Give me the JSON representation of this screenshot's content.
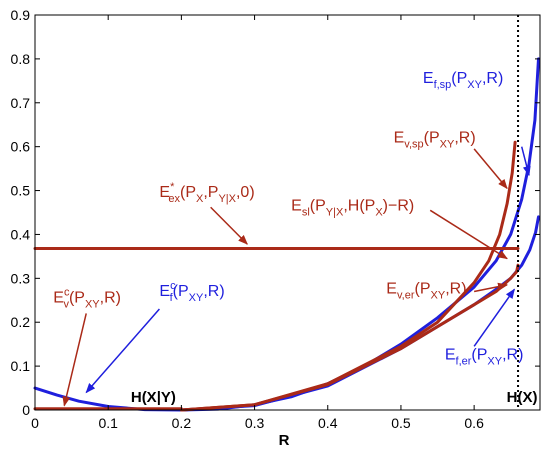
{
  "chart_data": {
    "type": "line",
    "title": "",
    "xlabel": "R",
    "ylabel": "",
    "xlim": [
      0,
      0.69
    ],
    "ylim": [
      0,
      0.9
    ],
    "xticks": [
      "0",
      "0.1",
      "0.2",
      "0.3",
      "0.4",
      "0.5",
      "0.6"
    ],
    "yticks": [
      "0",
      "0.1",
      "0.2",
      "0.3",
      "0.4",
      "0.5",
      "0.6",
      "0.7",
      "0.8",
      "0.9"
    ],
    "vertical_line": {
      "x": 0.66,
      "style": "dotted",
      "label": "H(X)"
    },
    "marker_labels": [
      {
        "text": "H(X|Y)",
        "x": 0.2
      }
    ],
    "series": [
      {
        "color": "#1f1fdd",
        "points": [
          [
            0,
            0.05
          ],
          [
            0.03,
            0.034
          ],
          [
            0.06,
            0.02
          ],
          [
            0.1,
            0.008
          ],
          [
            0.15,
            0.001
          ],
          [
            0.2,
            0
          ],
          [
            0.25,
            0.002
          ],
          [
            0.3,
            0.012
          ],
          [
            0.35,
            0.03
          ],
          [
            0.4,
            0.06
          ],
          [
            0.45,
            0.1
          ],
          [
            0.5,
            0.15
          ],
          [
            0.55,
            0.21
          ],
          [
            0.6,
            0.28
          ],
          [
            0.63,
            0.34
          ],
          [
            0.65,
            0.4
          ],
          [
            0.665,
            0.48
          ],
          [
            0.675,
            0.56
          ],
          [
            0.683,
            0.66
          ],
          [
            0.688,
            0.8
          ]
        ]
      },
      {
        "color": "#1f1fdd",
        "points": [
          [
            0.2,
            0
          ],
          [
            0.3,
            0.01
          ],
          [
            0.4,
            0.055
          ],
          [
            0.5,
            0.14
          ],
          [
            0.55,
            0.19
          ],
          [
            0.6,
            0.24
          ],
          [
            0.63,
            0.275
          ],
          [
            0.65,
            0.3
          ],
          [
            0.665,
            0.33
          ],
          [
            0.676,
            0.365
          ],
          [
            0.684,
            0.405
          ],
          [
            0.688,
            0.44
          ]
        ]
      },
      {
        "color": "#aa2a18",
        "points": [
          [
            0.2,
            0
          ],
          [
            0.3,
            0.012
          ],
          [
            0.4,
            0.06
          ],
          [
            0.5,
            0.145
          ],
          [
            0.55,
            0.2
          ],
          [
            0.6,
            0.29
          ],
          [
            0.62,
            0.34
          ],
          [
            0.635,
            0.4
          ],
          [
            0.645,
            0.47
          ],
          [
            0.652,
            0.54
          ],
          [
            0.656,
            0.61
          ]
        ]
      },
      {
        "color": "#aa2a18",
        "points": [
          [
            0.2,
            0
          ],
          [
            0.3,
            0.012
          ],
          [
            0.4,
            0.058
          ],
          [
            0.5,
            0.14
          ],
          [
            0.56,
            0.2
          ],
          [
            0.6,
            0.24
          ],
          [
            0.63,
            0.27
          ],
          [
            0.65,
            0.3
          ],
          [
            0.658,
            0.315
          ],
          [
            0.66,
            0.33
          ]
        ]
      },
      {
        "color": "#aa2a18",
        "points": [
          [
            0,
            0.368
          ],
          [
            0.66,
            0.368
          ]
        ]
      },
      {
        "color": "#aa2a18",
        "points": [
          [
            0,
            0.003
          ],
          [
            0.2,
            0.003
          ]
        ]
      }
    ],
    "annotations": [
      {
        "color": "#1f1fdd",
        "text": "E",
        "sub": "f,sp",
        "sup": "",
        "arg": "(P",
        "argsub": "XY",
        "tail": ",R)",
        "lx": 0.53,
        "ly": 0.745,
        "ax": 0.665,
        "ay": 0.6,
        "tx": 0.675,
        "ty": 0.535
      },
      {
        "color": "#aa2a18",
        "text": "E",
        "sub": "v,sp",
        "sup": "",
        "arg": "(P",
        "argsub": "XY",
        "tail": ",R)",
        "lx": 0.49,
        "ly": 0.61,
        "ax": 0.6,
        "ay": 0.595,
        "tx": 0.645,
        "ty": 0.505
      },
      {
        "color": "#aa2a18",
        "text": "E",
        "sub": "ex",
        "sup": "*",
        "arg": "(P",
        "argsub": "X",
        "tail": ",P",
        "tail2sub": "Y|X",
        "tail2": ",0)",
        "lx": 0.17,
        "ly": 0.485,
        "ax": 0.24,
        "ay": 0.462,
        "tx": 0.29,
        "ty": 0.378
      },
      {
        "color": "#aa2a18",
        "text": "E",
        "sub": "sl",
        "sup": "",
        "arg": "(P",
        "argsub": "Y|X",
        "tail": ",H(P",
        "tail2sub": "X",
        "tail2": ")−R)",
        "lx": 0.35,
        "ly": 0.455,
        "ax": 0.54,
        "ay": 0.455,
        "tx": 0.645,
        "ty": 0.345
      },
      {
        "color": "#aa2a18",
        "text": "E",
        "sub": "v,er",
        "sup": "",
        "arg": "(P",
        "argsub": "XY",
        "tail": ",R)",
        "lx": 0.48,
        "ly": 0.265,
        "ax": 0.6,
        "ay": 0.27,
        "tx": 0.645,
        "ty": 0.285
      },
      {
        "color": "#1f1fdd",
        "text": "E",
        "sub": "f,er",
        "sup": "",
        "arg": "(P",
        "argsub": "XY",
        "tail": ",R)",
        "lx": 0.56,
        "ly": 0.115,
        "ax": 0.6,
        "ay": 0.145,
        "tx": 0.655,
        "ty": 0.275
      },
      {
        "color": "#aa2a18",
        "text": "E",
        "sub": "v",
        "sup": "c",
        "arg": "(P",
        "argsub": "XY",
        "tail": ",R)",
        "lx": 0.025,
        "ly": 0.245,
        "ax": 0.07,
        "ay": 0.22,
        "tx": 0.04,
        "ty": 0.01
      },
      {
        "color": "#1f1fdd",
        "text": "E",
        "sub": "f",
        "sup": "c",
        "arg": "(P",
        "argsub": "XY",
        "tail": ",R)",
        "lx": 0.17,
        "ly": 0.26,
        "ax": 0.17,
        "ay": 0.23,
        "tx": 0.07,
        "ty": 0.04
      }
    ]
  }
}
